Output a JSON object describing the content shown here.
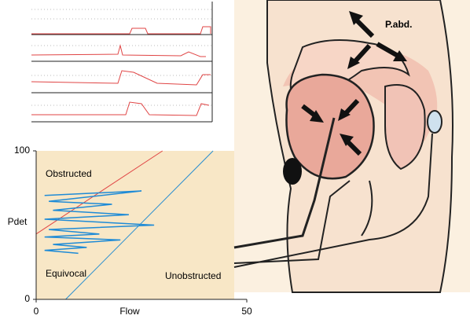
{
  "chart_data": {
    "type": "line",
    "xlabel": "Flow",
    "ylabel": "Pdet",
    "xlim": [
      0,
      50
    ],
    "xticks": [
      0,
      50
    ],
    "ylim": [
      0,
      100
    ],
    "yticks": [
      0,
      100
    ],
    "annotations": [
      "Obstructed",
      "Equivocal",
      "Unobstructed"
    ],
    "series": [
      {
        "color": "#e04545",
        "x": [
          0,
          30
        ],
        "values": [
          44,
          100
        ]
      },
      {
        "color": "#2a8fd0",
        "x": [
          7,
          42
        ],
        "values": [
          0,
          100
        ]
      },
      {
        "color": "#1f8bd6",
        "x": [
          2,
          25,
          3,
          18,
          4,
          22,
          2,
          28,
          3,
          15,
          2,
          20,
          4,
          12,
          2,
          10
        ],
        "values": [
          70,
          73,
          66,
          64,
          60,
          57,
          54,
          50,
          47,
          44,
          42,
          40,
          37,
          35,
          33,
          31
        ]
      }
    ]
  },
  "illustration": {
    "label": "P.abd."
  }
}
